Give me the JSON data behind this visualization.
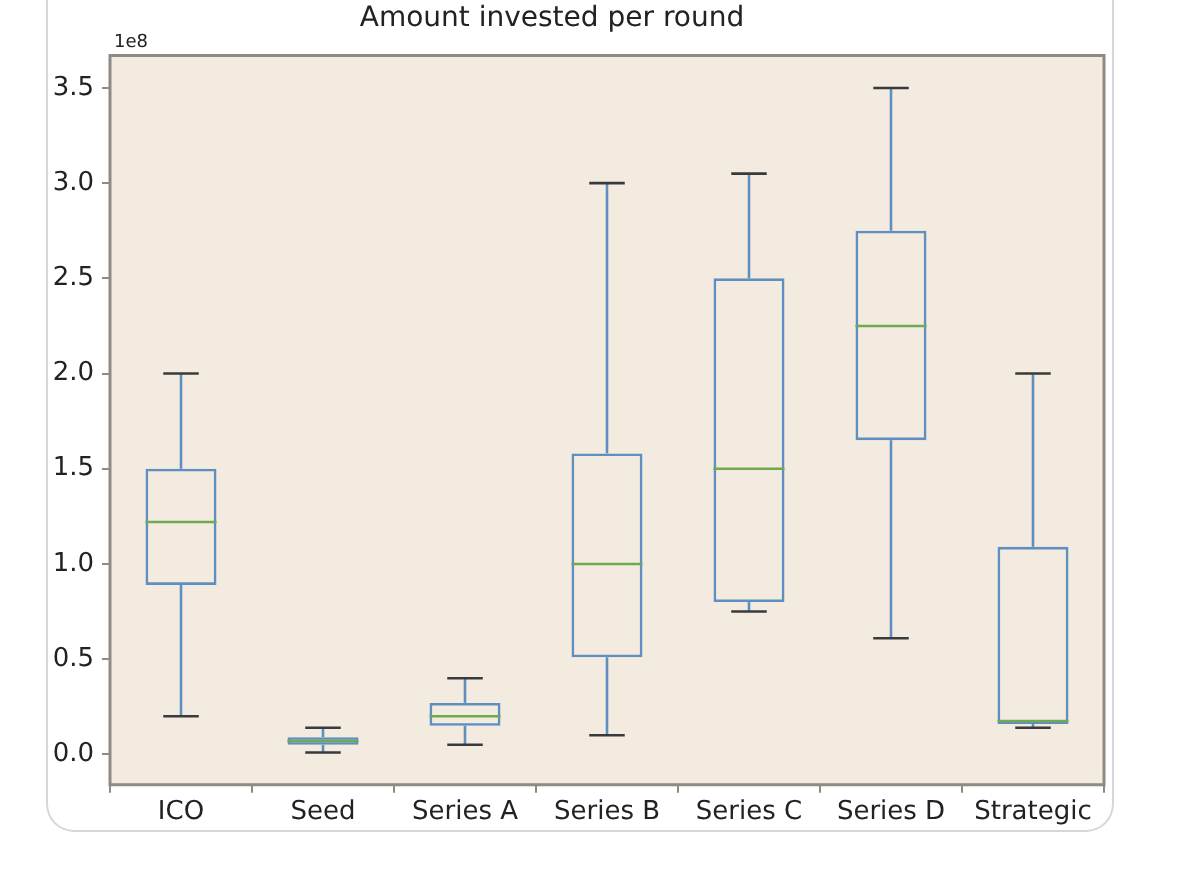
{
  "chart_data": {
    "type": "box",
    "title": "Amount invested per round",
    "categories": [
      "ICO",
      "Seed",
      "Series A",
      "Series B",
      "Series C",
      "Series D",
      "Strategic"
    ],
    "series": [
      {
        "color": "#5f8fc0",
        "boxes": [
          {
            "low": 0.2,
            "q1": 0.89,
            "median": 1.22,
            "q3": 1.5,
            "high": 2.0
          },
          {
            "low": 0.01,
            "q1": 0.05,
            "median": 0.07,
            "q3": 0.09,
            "high": 0.14
          },
          {
            "low": 0.05,
            "q1": 0.15,
            "median": 0.2,
            "q3": 0.27,
            "high": 0.4
          },
          {
            "low": 0.1,
            "q1": 0.51,
            "median": 1.0,
            "q3": 1.58,
            "high": 3.0
          },
          {
            "low": 0.75,
            "q1": 0.8,
            "median": 1.5,
            "q3": 2.5,
            "high": 3.05
          },
          {
            "low": 0.61,
            "q1": 1.65,
            "median": 2.25,
            "q3": 2.75,
            "high": 3.5
          },
          {
            "low": 0.14,
            "q1": 0.16,
            "median": 0.175,
            "q3": 1.09,
            "high": 2.0
          }
        ]
      }
    ],
    "ylim": [
      -0.16,
      3.67
    ],
    "yticks": [
      {
        "value": 0,
        "label": "0.0"
      },
      0.5,
      {
        "value": 1,
        "label": "1.0"
      },
      1.5,
      {
        "value": 2,
        "label": "2.0"
      },
      2.5,
      {
        "value": 3,
        "label": "3.0"
      },
      3.5
    ],
    "annotations": [
      "1e8"
    ]
  }
}
